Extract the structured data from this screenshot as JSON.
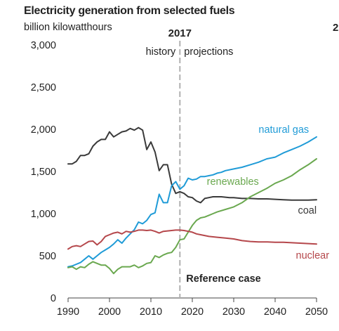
{
  "header": {
    "title": "Electricity generation from selected fuels",
    "subtitle": "billion kilowatthours",
    "edge_glyph": "2"
  },
  "chart_data": {
    "type": "line",
    "title": "Electricity generation from selected fuels",
    "ylabel": "billion kilowatthours",
    "xlabel": "",
    "xlim": [
      1990,
      2050
    ],
    "ylim": [
      0,
      3000
    ],
    "x_ticks": [
      "1990",
      "2000",
      "2010",
      "2020",
      "2030",
      "2040",
      "2050"
    ],
    "y_ticks": [
      "0",
      "500",
      "1,000",
      "1,500",
      "2,000",
      "2,500",
      "3,000"
    ],
    "grid": false,
    "divider": {
      "year": 2017,
      "label": "2017",
      "left_label": "history",
      "right_label": "projections"
    },
    "annotation": "Reference case",
    "series": [
      {
        "name": "coal",
        "color": "#3a3a3a",
        "points": [
          [
            1990,
            1590
          ],
          [
            1991,
            1590
          ],
          [
            1992,
            1620
          ],
          [
            1993,
            1690
          ],
          [
            1994,
            1690
          ],
          [
            1995,
            1710
          ],
          [
            1996,
            1800
          ],
          [
            1997,
            1850
          ],
          [
            1998,
            1880
          ],
          [
            1999,
            1880
          ],
          [
            2000,
            1970
          ],
          [
            2001,
            1910
          ],
          [
            2002,
            1940
          ],
          [
            2003,
            1970
          ],
          [
            2004,
            1980
          ],
          [
            2005,
            2010
          ],
          [
            2006,
            1990
          ],
          [
            2007,
            2020
          ],
          [
            2008,
            1990
          ],
          [
            2009,
            1760
          ],
          [
            2010,
            1850
          ],
          [
            2011,
            1730
          ],
          [
            2012,
            1510
          ],
          [
            2013,
            1580
          ],
          [
            2014,
            1580
          ],
          [
            2015,
            1350
          ],
          [
            2016,
            1240
          ],
          [
            2017,
            1260
          ],
          [
            2018,
            1240
          ],
          [
            2019,
            1200
          ],
          [
            2020,
            1190
          ],
          [
            2021,
            1150
          ],
          [
            2022,
            1130
          ],
          [
            2023,
            1180
          ],
          [
            2024,
            1190
          ],
          [
            2025,
            1200
          ],
          [
            2026,
            1200
          ],
          [
            2027,
            1200
          ],
          [
            2028,
            1195
          ],
          [
            2029,
            1190
          ],
          [
            2030,
            1190
          ],
          [
            2032,
            1180
          ],
          [
            2034,
            1180
          ],
          [
            2036,
            1175
          ],
          [
            2038,
            1175
          ],
          [
            2040,
            1170
          ],
          [
            2042,
            1165
          ],
          [
            2044,
            1160
          ],
          [
            2046,
            1160
          ],
          [
            2048,
            1160
          ],
          [
            2050,
            1165
          ]
        ]
      },
      {
        "name": "natural gas",
        "color": "#1f9bd7",
        "points": [
          [
            1990,
            370
          ],
          [
            1991,
            380
          ],
          [
            1992,
            400
          ],
          [
            1993,
            420
          ],
          [
            1994,
            460
          ],
          [
            1995,
            500
          ],
          [
            1996,
            460
          ],
          [
            1997,
            500
          ],
          [
            1998,
            540
          ],
          [
            1999,
            570
          ],
          [
            2000,
            600
          ],
          [
            2001,
            640
          ],
          [
            2002,
            690
          ],
          [
            2003,
            650
          ],
          [
            2004,
            710
          ],
          [
            2005,
            760
          ],
          [
            2006,
            810
          ],
          [
            2007,
            900
          ],
          [
            2008,
            880
          ],
          [
            2009,
            920
          ],
          [
            2010,
            990
          ],
          [
            2011,
            1010
          ],
          [
            2012,
            1230
          ],
          [
            2013,
            1130
          ],
          [
            2014,
            1130
          ],
          [
            2015,
            1330
          ],
          [
            2016,
            1380
          ],
          [
            2017,
            1290
          ],
          [
            2018,
            1330
          ],
          [
            2019,
            1420
          ],
          [
            2020,
            1400
          ],
          [
            2021,
            1410
          ],
          [
            2022,
            1440
          ],
          [
            2023,
            1440
          ],
          [
            2024,
            1450
          ],
          [
            2025,
            1460
          ],
          [
            2026,
            1480
          ],
          [
            2027,
            1490
          ],
          [
            2028,
            1510
          ],
          [
            2030,
            1530
          ],
          [
            2032,
            1550
          ],
          [
            2034,
            1580
          ],
          [
            2036,
            1610
          ],
          [
            2038,
            1650
          ],
          [
            2040,
            1670
          ],
          [
            2042,
            1720
          ],
          [
            2044,
            1760
          ],
          [
            2046,
            1800
          ],
          [
            2048,
            1850
          ],
          [
            2050,
            1910
          ]
        ]
      },
      {
        "name": "renewables",
        "color": "#6aa84f",
        "points": [
          [
            1990,
            360
          ],
          [
            1991,
            370
          ],
          [
            1992,
            340
          ],
          [
            1993,
            370
          ],
          [
            1994,
            360
          ],
          [
            1995,
            400
          ],
          [
            1996,
            430
          ],
          [
            1997,
            410
          ],
          [
            1998,
            390
          ],
          [
            1999,
            390
          ],
          [
            2000,
            350
          ],
          [
            2001,
            290
          ],
          [
            2002,
            340
          ],
          [
            2003,
            370
          ],
          [
            2004,
            370
          ],
          [
            2005,
            370
          ],
          [
            2006,
            390
          ],
          [
            2007,
            360
          ],
          [
            2008,
            380
          ],
          [
            2009,
            410
          ],
          [
            2010,
            420
          ],
          [
            2011,
            500
          ],
          [
            2012,
            480
          ],
          [
            2013,
            510
          ],
          [
            2014,
            530
          ],
          [
            2015,
            540
          ],
          [
            2016,
            600
          ],
          [
            2017,
            690
          ],
          [
            2018,
            700
          ],
          [
            2019,
            780
          ],
          [
            2020,
            860
          ],
          [
            2021,
            920
          ],
          [
            2022,
            950
          ],
          [
            2023,
            960
          ],
          [
            2024,
            980
          ],
          [
            2025,
            1000
          ],
          [
            2026,
            1020
          ],
          [
            2028,
            1050
          ],
          [
            2030,
            1080
          ],
          [
            2032,
            1130
          ],
          [
            2034,
            1200
          ],
          [
            2036,
            1250
          ],
          [
            2038,
            1300
          ],
          [
            2040,
            1360
          ],
          [
            2042,
            1400
          ],
          [
            2044,
            1450
          ],
          [
            2046,
            1520
          ],
          [
            2048,
            1580
          ],
          [
            2050,
            1650
          ]
        ]
      },
      {
        "name": "nuclear",
        "color": "#b5474b",
        "points": [
          [
            1990,
            580
          ],
          [
            1991,
            610
          ],
          [
            1992,
            620
          ],
          [
            1993,
            610
          ],
          [
            1994,
            640
          ],
          [
            1995,
            670
          ],
          [
            1996,
            675
          ],
          [
            1997,
            630
          ],
          [
            1998,
            670
          ],
          [
            1999,
            730
          ],
          [
            2000,
            750
          ],
          [
            2001,
            770
          ],
          [
            2002,
            780
          ],
          [
            2003,
            760
          ],
          [
            2004,
            790
          ],
          [
            2005,
            780
          ],
          [
            2006,
            790
          ],
          [
            2007,
            805
          ],
          [
            2008,
            805
          ],
          [
            2009,
            800
          ],
          [
            2010,
            805
          ],
          [
            2011,
            790
          ],
          [
            2012,
            770
          ],
          [
            2013,
            790
          ],
          [
            2014,
            795
          ],
          [
            2015,
            800
          ],
          [
            2016,
            805
          ],
          [
            2017,
            805
          ],
          [
            2018,
            800
          ],
          [
            2019,
            790
          ],
          [
            2020,
            780
          ],
          [
            2021,
            760
          ],
          [
            2022,
            750
          ],
          [
            2024,
            730
          ],
          [
            2026,
            720
          ],
          [
            2028,
            710
          ],
          [
            2030,
            700
          ],
          [
            2032,
            680
          ],
          [
            2034,
            670
          ],
          [
            2036,
            665
          ],
          [
            2038,
            665
          ],
          [
            2040,
            660
          ],
          [
            2042,
            660
          ],
          [
            2044,
            655
          ],
          [
            2046,
            650
          ],
          [
            2048,
            645
          ],
          [
            2050,
            640
          ]
        ]
      }
    ],
    "series_labels": [
      {
        "series": "natural gas",
        "text": "natural gas",
        "x": 2036,
        "y": 1960
      },
      {
        "series": "renewables",
        "text": "renewables",
        "x": 2023.5,
        "y": 1340
      },
      {
        "series": "coal",
        "text": "coal",
        "x": 2045.5,
        "y": 1000
      },
      {
        "series": "nuclear",
        "text": "nuclear",
        "x": 2045,
        "y": 465
      }
    ]
  }
}
